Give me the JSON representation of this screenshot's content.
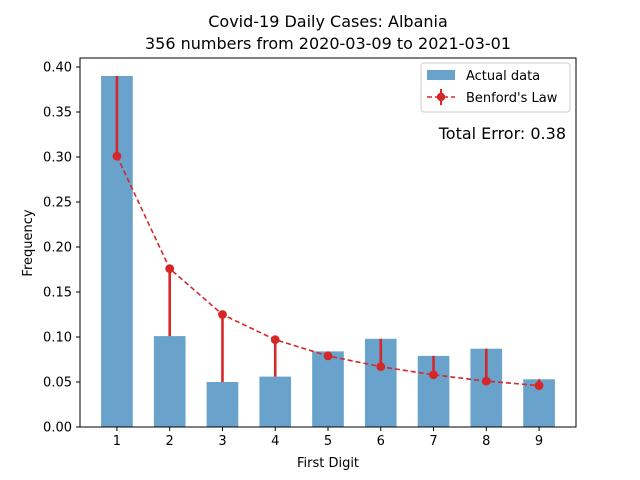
{
  "chart_data": {
    "type": "bar",
    "title": "Covid-19 Daily Cases: Albania",
    "subtitle": "356 numbers from 2020-03-09 to 2021-03-01",
    "xlabel": "First Digit",
    "ylabel": "Frequency",
    "categories": [
      "1",
      "2",
      "3",
      "4",
      "5",
      "6",
      "7",
      "8",
      "9"
    ],
    "ylim": [
      0,
      0.4
    ],
    "yticks": [
      "0.00",
      "0.05",
      "0.10",
      "0.15",
      "0.20",
      "0.25",
      "0.30",
      "0.35",
      "0.40"
    ],
    "series": [
      {
        "name": "Actual data",
        "kind": "bar",
        "color": "#69a3cb",
        "values": [
          0.39,
          0.101,
          0.05,
          0.056,
          0.084,
          0.098,
          0.079,
          0.087,
          0.053
        ]
      },
      {
        "name": "Benford's Law",
        "kind": "line-errorbar",
        "color": "#d62728",
        "values": [
          0.301,
          0.176,
          0.125,
          0.097,
          0.079,
          0.067,
          0.058,
          0.051,
          0.046
        ]
      }
    ],
    "annotation": "Total Error: 0.38",
    "annotation_color": "#d62728",
    "legend_position": "top-right",
    "grid": false
  }
}
